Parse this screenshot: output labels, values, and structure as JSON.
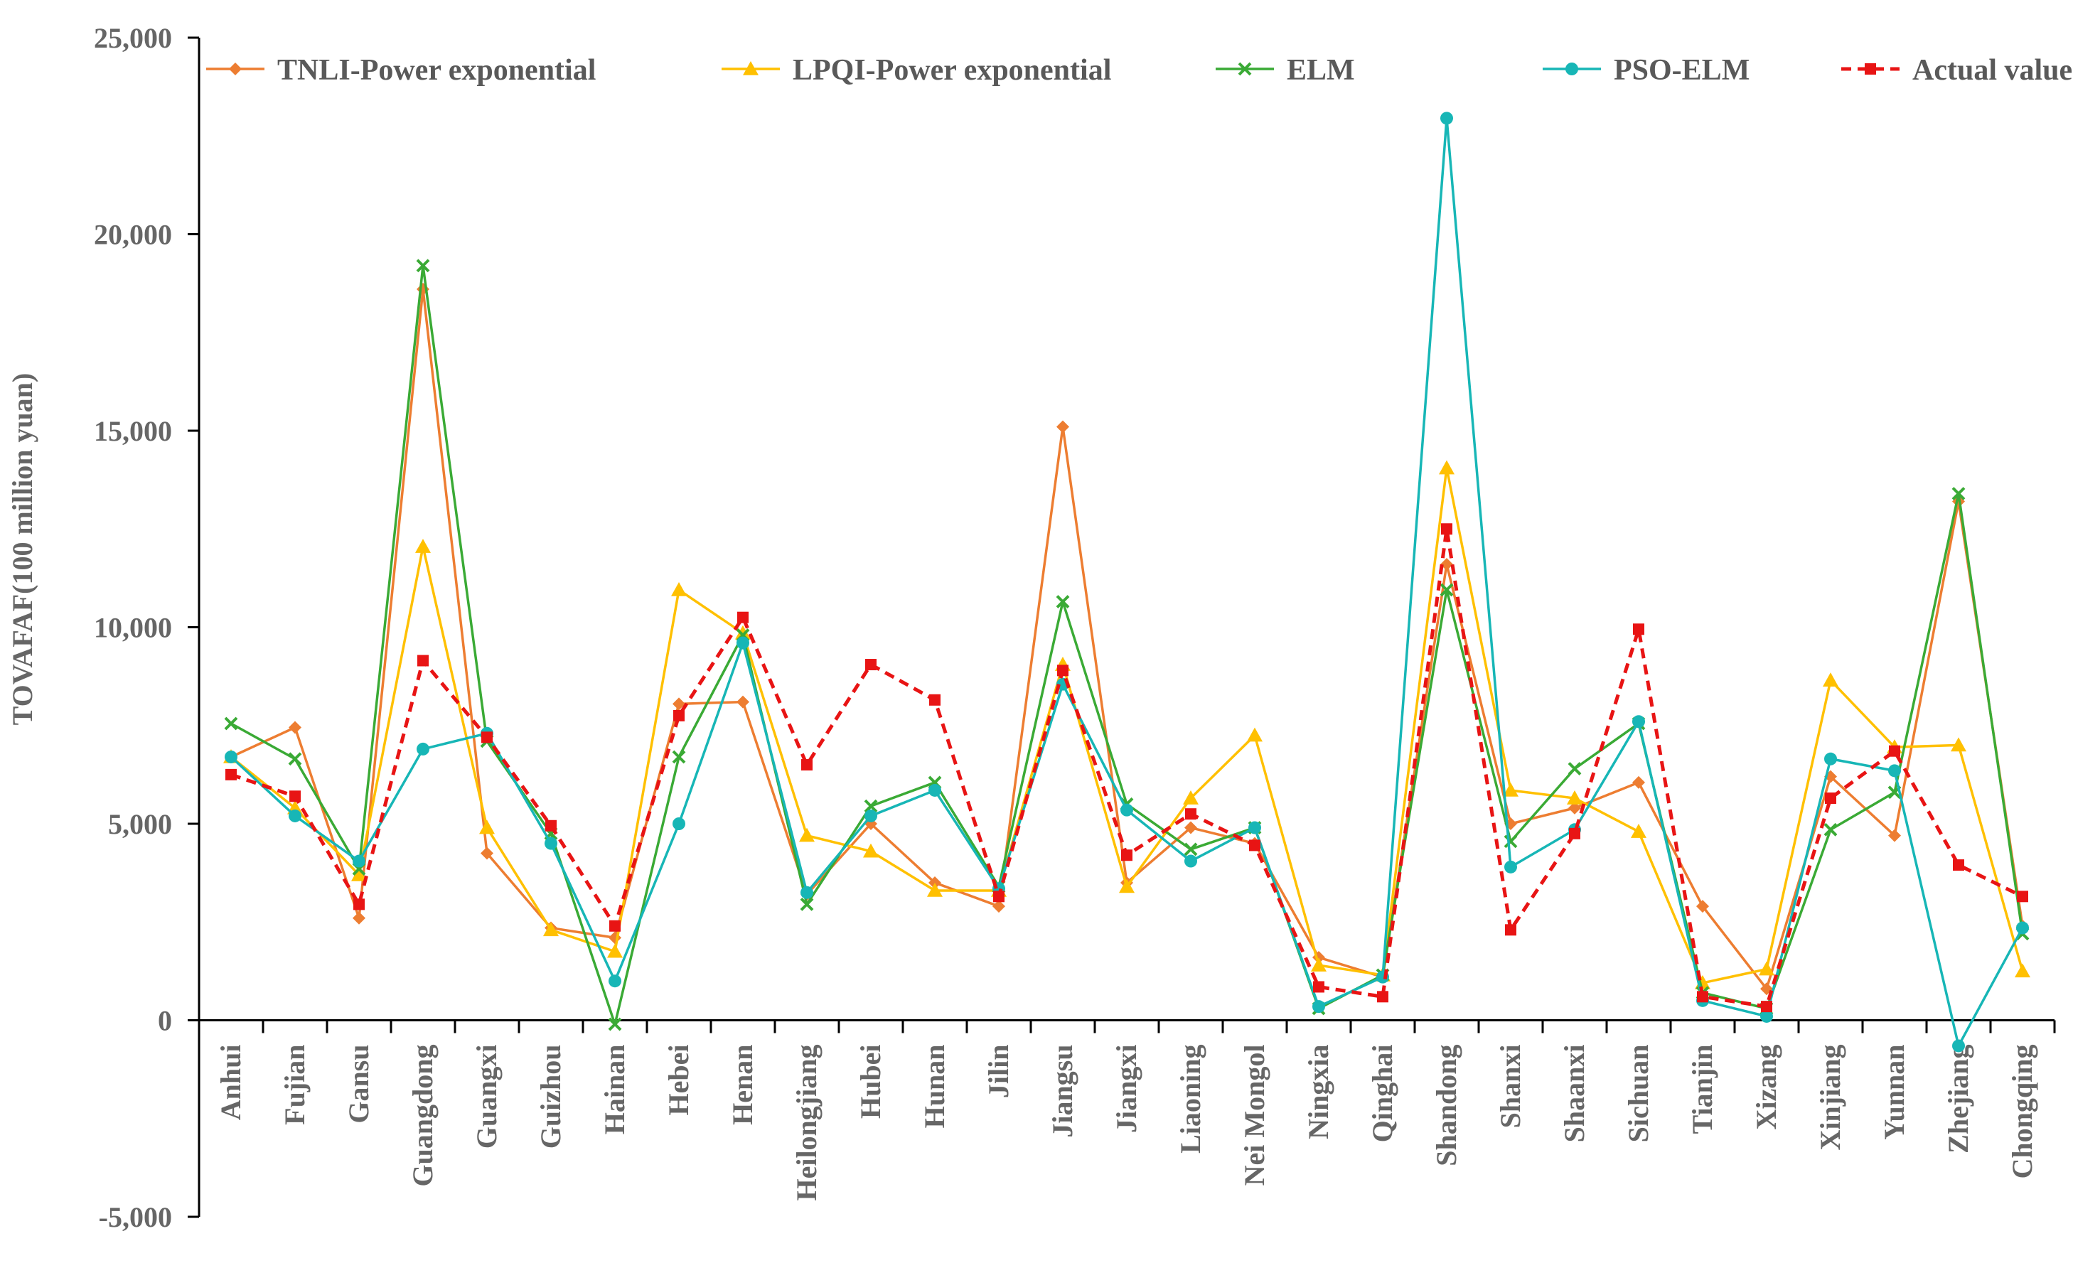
{
  "chart_data": {
    "type": "line",
    "title": "",
    "xlabel": "",
    "ylabel": "TOVAFAF(100 million yuan)",
    "ylim": [
      -5000,
      25000
    ],
    "yticks": [
      -5000,
      0,
      5000,
      10000,
      15000,
      20000,
      25000
    ],
    "ytick_labels": [
      "-5,000",
      "0",
      "5,000",
      "10,000",
      "15,000",
      "20,000",
      "25,000"
    ],
    "grid": false,
    "legend_position": "top",
    "categories": [
      "Anhui",
      "Fujian",
      "Gansu",
      "Guangdong",
      "Guangxi",
      "Guizhou",
      "Hainan",
      "Hebei",
      "Henan",
      "Heilongjiang",
      "Hubei",
      "Hunan",
      "Jilin",
      "Jiangsu",
      "Jiangxi",
      "Liaoning",
      "Nei Mongol",
      "Ningxia",
      "Qinghai",
      "Shandong",
      "Shanxi",
      "Shaanxi",
      "Sichuan",
      "Tianjin",
      "Xizang",
      "Xinjiang",
      "Yunnan",
      "Zhejiang",
      "Chongqing"
    ],
    "series": [
      {
        "name": "TNLI-Power exponential",
        "color": "#ED7D31",
        "marker": "diamond",
        "dash": "solid",
        "values": [
          6700,
          7450,
          2600,
          18600,
          4250,
          2350,
          2100,
          8050,
          8100,
          3200,
          5000,
          3500,
          2900,
          15100,
          3500,
          4900,
          4500,
          1600,
          1100,
          11600,
          5000,
          5400,
          6050,
          2900,
          800,
          6200,
          4700,
          13200,
          2400
        ]
      },
      {
        "name": "LPQI-Power exponential",
        "color": "#FFC000",
        "marker": "triangle",
        "dash": "solid",
        "values": [
          6700,
          5400,
          3700,
          12050,
          4900,
          2300,
          1750,
          10950,
          9850,
          4700,
          4300,
          3300,
          3300,
          9050,
          3400,
          5650,
          7250,
          1400,
          1150,
          14050,
          5850,
          5650,
          4800,
          950,
          1300,
          8650,
          6950,
          7000,
          1250
        ]
      },
      {
        "name": "ELM",
        "color": "#3AAA35",
        "marker": "x",
        "dash": "solid",
        "values": [
          7550,
          6650,
          3850,
          19200,
          7100,
          4750,
          -100,
          6700,
          9800,
          2950,
          5450,
          6050,
          3400,
          10650,
          5500,
          4350,
          4900,
          300,
          1150,
          10950,
          4550,
          6400,
          7550,
          700,
          300,
          4850,
          5800,
          13400,
          2200
        ]
      },
      {
        "name": "PSO-ELM",
        "color": "#17B6B6",
        "marker": "circle",
        "dash": "solid",
        "values": [
          6700,
          5200,
          4050,
          6900,
          7300,
          4500,
          1000,
          5000,
          9600,
          3250,
          5200,
          5850,
          3350,
          8550,
          5350,
          4050,
          4900,
          350,
          1100,
          22950,
          3900,
          4850,
          7600,
          500,
          100,
          6650,
          6350,
          -650,
          2350
        ]
      },
      {
        "name": "Actual value",
        "color": "#E81414",
        "marker": "square",
        "dash": "dashed",
        "values": [
          6250,
          5700,
          2950,
          9150,
          7200,
          4950,
          2400,
          7750,
          10250,
          6500,
          9050,
          8150,
          3150,
          8900,
          4200,
          5250,
          4450,
          850,
          600,
          12500,
          2300,
          4750,
          9950,
          600,
          350,
          5650,
          6850,
          3950,
          3150
        ]
      }
    ]
  }
}
